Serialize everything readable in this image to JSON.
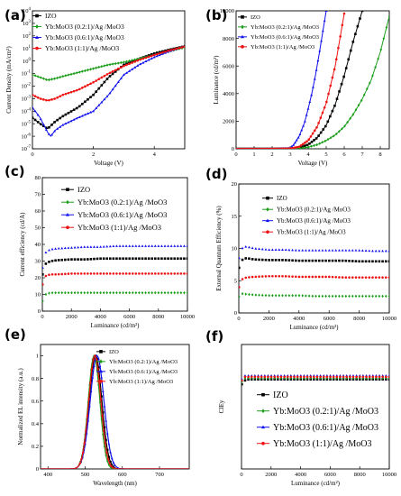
{
  "colors": {
    "IZO": "#000000",
    "s021": "#1a9e1a",
    "s061": "#1010ee",
    "s11": "#ee1111"
  },
  "legend_labels": {
    "IZO": "IZO",
    "s021": "Yb:MoO3 (0.2:1)/Ag /MoO3",
    "s061": "Yb:MoO3 (0.6:1)/Ag /MoO3",
    "s11": "Yb:MoO3 (1:1)/Ag /MoO3"
  },
  "chart_data": [
    {
      "panel": "(a)",
      "type": "line",
      "yscale": "log",
      "xlabel": "Voltage (V)",
      "ylabel": "Current Density (mA/cm²)",
      "xlim": [
        0,
        5
      ],
      "ylim": [
        1e-07,
        10000.0
      ],
      "xticks": [
        0,
        2,
        4
      ],
      "yticks": [
        1e-07,
        1e-06,
        1e-05,
        0.0001,
        0.001,
        0.01,
        0.1,
        1,
        10,
        100,
        1000,
        10000
      ],
      "legend": "top-left",
      "series": [
        {
          "key": "IZO",
          "marker": "square",
          "x": [
            0,
            0.25,
            0.5,
            0.75,
            1,
            1.5,
            2,
            2.5,
            3,
            3.5,
            4,
            4.5,
            5
          ],
          "y": [
            3e-05,
            1e-05,
            4e-06,
            1.5e-05,
            4e-05,
            0.0002,
            0.002,
            0.05,
            0.5,
            1.5,
            4,
            8,
            15
          ]
        },
        {
          "key": "s021",
          "marker": "diamond",
          "x": [
            0,
            0.25,
            0.5,
            0.75,
            1,
            1.5,
            2,
            2.5,
            3,
            3.5,
            4,
            4.5,
            5
          ],
          "y": [
            0.08,
            0.05,
            0.03,
            0.04,
            0.06,
            0.12,
            0.25,
            0.5,
            0.8,
            1.5,
            3,
            6,
            12
          ]
        },
        {
          "key": "s061",
          "marker": "triangle",
          "x": [
            0,
            0.25,
            0.5,
            0.6,
            0.75,
            1,
            1.5,
            2,
            2.5,
            3,
            3.5,
            4,
            4.5,
            5
          ],
          "y": [
            0.0002,
            3e-05,
            2e-06,
            1e-06,
            3e-06,
            8e-06,
            3e-05,
            0.0001,
            0.002,
            0.08,
            0.5,
            2,
            6,
            15
          ]
        },
        {
          "key": "s11",
          "marker": "circle",
          "x": [
            0,
            0.25,
            0.5,
            0.75,
            1,
            1.5,
            2,
            2.5,
            3,
            3.5,
            4,
            4.5,
            5
          ],
          "y": [
            0.002,
            0.001,
            0.0007,
            0.001,
            0.002,
            0.005,
            0.02,
            0.1,
            0.4,
            1.2,
            3,
            7,
            14
          ]
        }
      ]
    },
    {
      "panel": "(b)",
      "type": "line",
      "xlabel": "Voltage (V)",
      "ylabel": "Luminance (cd/m²)",
      "xlim": [
        0,
        8.5
      ],
      "ylim": [
        0,
        10000
      ],
      "xticks": [
        0,
        1,
        2,
        3,
        4,
        5,
        6,
        7,
        8
      ],
      "yticks": [
        0,
        2000,
        4000,
        6000,
        8000,
        10000
      ],
      "legend": "top-left",
      "series": [
        {
          "key": "IZO",
          "marker": "square",
          "x": [
            0,
            1,
            2,
            3,
            3.5,
            4,
            4.5,
            5,
            5.5,
            6,
            6.5,
            7
          ],
          "y": [
            0,
            0,
            0,
            10,
            80,
            300,
            800,
            1700,
            3200,
            5300,
            7800,
            10000
          ]
        },
        {
          "key": "s021",
          "marker": "diamond",
          "x": [
            0,
            1,
            2,
            3,
            3.5,
            4,
            4.5,
            5,
            5.5,
            6,
            6.5,
            7,
            7.5,
            8,
            8.5
          ],
          "y": [
            0,
            0,
            0,
            5,
            30,
            120,
            300,
            600,
            1000,
            1600,
            2500,
            3600,
            5000,
            7000,
            9600
          ]
        },
        {
          "key": "s061",
          "marker": "triangle",
          "x": [
            0,
            1,
            2,
            3,
            3.2,
            3.5,
            3.8,
            4,
            4.2,
            4.4,
            4.6,
            4.8,
            5
          ],
          "y": [
            0,
            0,
            0,
            50,
            300,
            900,
            1900,
            2900,
            4000,
            5300,
            6800,
            8400,
            10000
          ]
        },
        {
          "key": "s11",
          "marker": "circle",
          "x": [
            0,
            1,
            2,
            3,
            3.5,
            4,
            4.5,
            5,
            5.5,
            6
          ],
          "y": [
            0,
            0,
            0,
            20,
            150,
            600,
            1600,
            3300,
            6000,
            9800
          ]
        }
      ]
    },
    {
      "panel": "(c)",
      "type": "scatter",
      "xlabel": "Luminance (cd/m²)",
      "ylabel": "Current efficiency (cd/A)",
      "xlim": [
        0,
        10000
      ],
      "ylim": [
        0,
        80
      ],
      "xticks": [
        0,
        2000,
        4000,
        6000,
        8000,
        10000
      ],
      "yticks": [
        0,
        10,
        20,
        30,
        40,
        50,
        60,
        70,
        80
      ],
      "legend": "top-right",
      "series": [
        {
          "key": "IZO",
          "marker": "square",
          "x": [
            20,
            100,
            300,
            600,
            1000,
            2000,
            3000,
            4000,
            5000,
            6000,
            7000,
            8000,
            9000,
            10000
          ],
          "y": [
            22,
            27,
            29,
            30,
            30.5,
            31,
            31,
            31.5,
            31.5,
            31.5,
            31.5,
            31.5,
            31.5,
            31.5
          ]
        },
        {
          "key": "s021",
          "marker": "diamond",
          "x": [
            20,
            100,
            300,
            600,
            1000,
            2000,
            3000,
            4000,
            5000,
            6000,
            7000,
            8000,
            9000,
            10000
          ],
          "y": [
            6,
            9,
            10.5,
            11,
            11,
            11,
            11,
            11,
            11,
            11,
            11,
            11,
            11,
            11
          ]
        },
        {
          "key": "s061",
          "marker": "triangle",
          "x": [
            20,
            100,
            300,
            600,
            1000,
            2000,
            3000,
            4000,
            5000,
            6000,
            7000,
            8000,
            9000,
            10000
          ],
          "y": [
            26,
            33,
            36,
            37,
            37.5,
            38,
            38.5,
            38.5,
            39,
            39,
            39,
            39,
            39,
            39
          ]
        },
        {
          "key": "s11",
          "marker": "circle",
          "x": [
            20,
            100,
            300,
            600,
            1000,
            2000,
            3000,
            4000,
            5000,
            6000,
            7000,
            8000,
            9000,
            10000
          ],
          "y": [
            16,
            20,
            21.5,
            22,
            22,
            22.5,
            22.5,
            22.5,
            22.5,
            22.5,
            22.5,
            22.5,
            22.5,
            22.5
          ]
        }
      ]
    },
    {
      "panel": "(d)",
      "type": "scatter",
      "xlabel": "Luminance (cd/m²)",
      "ylabel": "External Quantum Efficiency (%)",
      "xlim": [
        0,
        10000
      ],
      "ylim": [
        0,
        20
      ],
      "xticks": [
        0,
        2000,
        4000,
        6000,
        8000,
        10000
      ],
      "yticks": [
        0,
        5,
        10,
        15,
        20
      ],
      "legend": "top-right",
      "series": [
        {
          "key": "IZO",
          "marker": "square",
          "x": [
            20,
            200,
            500,
            1000,
            2000,
            3000,
            4000,
            5000,
            6000,
            7000,
            8000,
            9000,
            10000
          ],
          "y": [
            7,
            8.2,
            8.5,
            8.3,
            8.2,
            8.2,
            8.1,
            8.1,
            8.1,
            8.1,
            8,
            8,
            8
          ]
        },
        {
          "key": "s021",
          "marker": "diamond",
          "x": [
            20,
            200,
            500,
            1000,
            2000,
            3000,
            4000,
            5000,
            6000,
            7000,
            8000,
            9000,
            10000
          ],
          "y": [
            2.5,
            3,
            2.9,
            2.8,
            2.7,
            2.7,
            2.7,
            2.6,
            2.6,
            2.6,
            2.6,
            2.6,
            2.6
          ]
        },
        {
          "key": "s061",
          "marker": "triangle",
          "x": [
            20,
            200,
            500,
            1000,
            2000,
            3000,
            4000,
            5000,
            6000,
            7000,
            8000,
            9000,
            10000
          ],
          "y": [
            8.5,
            10,
            10.3,
            10,
            9.8,
            9.8,
            9.7,
            9.7,
            9.7,
            9.7,
            9.7,
            9.6,
            9.6
          ]
        },
        {
          "key": "s11",
          "marker": "circle",
          "x": [
            20,
            200,
            500,
            1000,
            2000,
            3000,
            4000,
            5000,
            6000,
            7000,
            8000,
            9000,
            10000
          ],
          "y": [
            4,
            5.2,
            5.5,
            5.6,
            5.7,
            5.7,
            5.6,
            5.6,
            5.6,
            5.5,
            5.5,
            5.5,
            5.5
          ]
        }
      ]
    },
    {
      "panel": "(e)",
      "type": "line",
      "xlabel": "Wavelength (nm)",
      "ylabel": "Normalized EL intensity (a.u.)",
      "xlim": [
        380,
        780
      ],
      "ylim": [
        0,
        1.1
      ],
      "xticks": [
        400,
        500,
        600,
        700
      ],
      "yticks": [
        0,
        0.2,
        0.4,
        0.6,
        0.8,
        1.0
      ],
      "legend": "top-right",
      "series": [
        {
          "key": "IZO",
          "marker": "square",
          "peak": 528,
          "width": 24
        },
        {
          "key": "s021",
          "marker": "diamond",
          "peak": 524,
          "width": 22
        },
        {
          "key": "s061",
          "marker": "triangle",
          "peak": 532,
          "width": 26
        },
        {
          "key": "s11",
          "marker": "circle",
          "peak": 526,
          "width": 23
        }
      ]
    },
    {
      "panel": "(f)",
      "type": "scatter",
      "xlabel": "Luminance (cd/m²)",
      "ylabel": "CIEy",
      "xlim": [
        0,
        10000
      ],
      "ylim": [
        0,
        1.0
      ],
      "xticks": [
        0,
        2000,
        4000,
        6000,
        8000,
        10000
      ],
      "legend": "lower-right",
      "series": [
        {
          "key": "IZO",
          "marker": "square",
          "x": [
            20,
            200,
            500,
            1000,
            2000,
            3000,
            4000,
            5000,
            6000,
            7000,
            8000,
            9000,
            10000
          ],
          "y": [
            0.68,
            0.71,
            0.72,
            0.72,
            0.72,
            0.72,
            0.72,
            0.72,
            0.72,
            0.72,
            0.72,
            0.72,
            0.72
          ]
        },
        {
          "key": "s021",
          "marker": "diamond",
          "x": [
            20,
            200,
            500,
            1000,
            2000,
            3000,
            4000,
            5000,
            6000,
            7000,
            8000,
            9000,
            10000
          ],
          "y": [
            0.7,
            0.73,
            0.73,
            0.73,
            0.73,
            0.73,
            0.73,
            0.73,
            0.73,
            0.73,
            0.73,
            0.73,
            0.73
          ]
        },
        {
          "key": "s061",
          "marker": "triangle",
          "x": [
            20,
            200,
            500,
            1000,
            2000,
            3000,
            4000,
            5000,
            6000,
            7000,
            8000,
            9000,
            10000
          ],
          "y": [
            0.72,
            0.75,
            0.75,
            0.75,
            0.75,
            0.75,
            0.75,
            0.75,
            0.75,
            0.75,
            0.75,
            0.75,
            0.75
          ]
        },
        {
          "key": "s11",
          "marker": "circle",
          "x": [
            20,
            200,
            500,
            1000,
            2000,
            3000,
            4000,
            5000,
            6000,
            7000,
            8000,
            9000,
            10000
          ],
          "y": [
            0.71,
            0.74,
            0.74,
            0.74,
            0.74,
            0.74,
            0.74,
            0.74,
            0.74,
            0.74,
            0.74,
            0.74,
            0.74
          ]
        }
      ]
    }
  ]
}
